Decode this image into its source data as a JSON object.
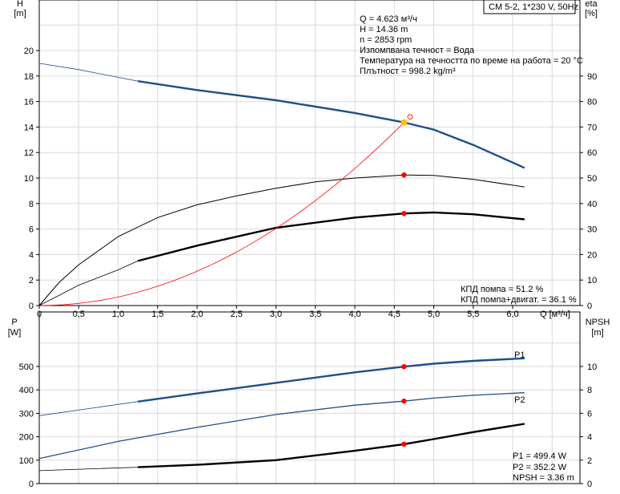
{
  "title_box": "CM 5-2, 1*230 V, 50Hz",
  "info": [
    "Q = 4.623 м³/ч",
    "H = 14.36 m",
    "n = 2853 rpm",
    "Изпомпвана течност = Вода",
    "Температура на течността по време на работа = 20 °C",
    "Плътност = 998.2 kg/m³"
  ],
  "eff_info": [
    "КПД помпа = 51.2 %",
    "КПД помпа+двигат. = 36.1 %"
  ],
  "power_info": [
    "P1 = 499.4 W",
    "P2 = 352.2 W",
    "NPSH = 3.36 m"
  ],
  "colors": {
    "head": "#1f4e8c",
    "eff": "#000000",
    "system": "#ff0000",
    "duty": "#ff0000",
    "duty_head": "#ffc000",
    "grid": "#d9d9d9"
  },
  "chart_data": [
    {
      "type": "line",
      "xlabel": "Q [м³/ч]",
      "x_ticks": [
        "0",
        "0,5",
        "1,0",
        "1,5",
        "2,0",
        "2,5",
        "3,0",
        "3,5",
        "4,0",
        "4,5",
        "5,0",
        "5,5",
        "6,0"
      ],
      "xlim": [
        0,
        6.85
      ],
      "ylabel_left": "H\n[m]",
      "ylabel_left_lines": [
        "H",
        "[m]"
      ],
      "ylim_left": [
        0,
        24
      ],
      "y_ticks_left": [
        0,
        2,
        4,
        6,
        8,
        10,
        12,
        14,
        16,
        18,
        20
      ],
      "ylabel_right_lines": [
        "eta",
        "[%]"
      ],
      "ylim_right": [
        0,
        120
      ],
      "y_ticks_right": [
        0,
        10,
        20,
        30,
        40,
        50,
        60,
        70,
        80,
        90
      ],
      "grid": true,
      "series": [
        {
          "key": "head",
          "axis": "left",
          "thick_from": 1.25,
          "points": [
            [
              0,
              19
            ],
            [
              0.5,
              18.5
            ],
            [
              1,
              17.9
            ],
            [
              1.25,
              17.6
            ],
            [
              2,
              16.9
            ],
            [
              3,
              16.1
            ],
            [
              4,
              15.1
            ],
            [
              4.623,
              14.36
            ],
            [
              5,
              13.8
            ],
            [
              5.5,
              12.6
            ],
            [
              6.15,
              10.8
            ]
          ]
        },
        {
          "key": "eta_pump",
          "axis": "right",
          "thin": true,
          "points": [
            [
              0,
              0
            ],
            [
              0.25,
              9
            ],
            [
              0.5,
              16
            ],
            [
              1,
              27
            ],
            [
              1.5,
              34.5
            ],
            [
              2,
              39.5
            ],
            [
              2.5,
              43
            ],
            [
              3,
              46
            ],
            [
              3.5,
              48.5
            ],
            [
              4,
              50
            ],
            [
              4.623,
              51.2
            ],
            [
              5,
              51
            ],
            [
              5.5,
              49.5
            ],
            [
              6.15,
              46.5
            ]
          ]
        },
        {
          "key": "eta_total",
          "axis": "right",
          "thick_from": 1.25,
          "points": [
            [
              0,
              0
            ],
            [
              0.5,
              8
            ],
            [
              1,
              14
            ],
            [
              1.25,
              17.5
            ],
            [
              2,
              23.5
            ],
            [
              3,
              30.5
            ],
            [
              4,
              34.5
            ],
            [
              4.623,
              36.1
            ],
            [
              5,
              36.5
            ],
            [
              5.5,
              35.8
            ],
            [
              6.15,
              33.8
            ]
          ]
        }
      ],
      "system_curve_end": 4.623,
      "duty": {
        "q": 4.623,
        "h": 14.36,
        "eta_pump": 51.2,
        "eta_total": 36.1
      }
    },
    {
      "type": "line",
      "xlim": [
        0,
        6.85
      ],
      "ylabel_left_lines": [
        "P",
        "[W]"
      ],
      "ylim_left": [
        0,
        700
      ],
      "y_ticks_left": [
        0,
        100,
        200,
        300,
        400,
        500
      ],
      "ylabel_right_lines": [
        "NPSH",
        "[m]"
      ],
      "ylim_right": [
        0,
        14
      ],
      "y_ticks_right": [
        0,
        2,
        4,
        6,
        8,
        10
      ],
      "grid": true,
      "series": [
        {
          "key": "P1",
          "name": "P1",
          "axis": "left",
          "thick_from": 1.25,
          "points": [
            [
              0,
              290
            ],
            [
              1.25,
              350
            ],
            [
              2,
              385
            ],
            [
              3,
              430
            ],
            [
              4,
              475
            ],
            [
              4.623,
              499.4
            ],
            [
              5,
              512
            ],
            [
              5.5,
              524
            ],
            [
              6.15,
              535
            ]
          ]
        },
        {
          "key": "P2",
          "name": "P2",
          "axis": "left",
          "points": [
            [
              0,
              107
            ],
            [
              1,
              180
            ],
            [
              2,
              240
            ],
            [
              3,
              295
            ],
            [
              4,
              335
            ],
            [
              4.623,
              352.2
            ],
            [
              5,
              365
            ],
            [
              5.5,
              377
            ],
            [
              6.15,
              388
            ]
          ]
        },
        {
          "key": "NPSH",
          "axis": "right",
          "thick_from": 1.25,
          "points": [
            [
              0,
              1.1
            ],
            [
              1.25,
              1.4
            ],
            [
              2,
              1.6
            ],
            [
              3,
              2.0
            ],
            [
              4,
              2.8
            ],
            [
              4.623,
              3.36
            ],
            [
              5,
              3.8
            ],
            [
              5.5,
              4.4
            ],
            [
              6.15,
              5.1
            ]
          ]
        }
      ],
      "duty": {
        "q": 4.623,
        "p1": 499.4,
        "p2": 352.2,
        "npsh": 3.36
      }
    }
  ]
}
